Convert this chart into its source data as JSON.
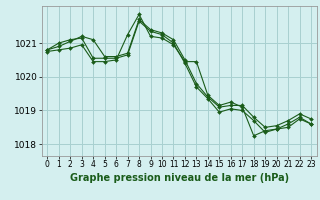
{
  "title": "Graphe pression niveau de la mer (hPa)",
  "background_color": "#d4efef",
  "grid_color": "#a8d0d0",
  "line_color": "#1a5c1a",
  "marker_color": "#1a5c1a",
  "xlim": [
    -0.5,
    23.5
  ],
  "ylim": [
    1017.65,
    1022.1
  ],
  "yticks": [
    1018,
    1019,
    1020,
    1021
  ],
  "xticks": [
    0,
    1,
    2,
    3,
    4,
    5,
    6,
    7,
    8,
    9,
    10,
    11,
    12,
    13,
    14,
    15,
    16,
    17,
    18,
    19,
    20,
    21,
    22,
    23
  ],
  "series1": [
    1020.8,
    1020.9,
    1021.05,
    1021.2,
    1021.1,
    1020.6,
    1020.6,
    1020.7,
    1021.7,
    1021.4,
    1021.3,
    1021.1,
    1020.5,
    1019.8,
    1019.4,
    1019.1,
    1019.15,
    1019.15,
    1018.8,
    1018.5,
    1018.55,
    1018.7,
    1018.9,
    1018.75
  ],
  "series2": [
    1020.8,
    1021.0,
    1021.1,
    1021.15,
    1020.55,
    1020.55,
    1020.55,
    1020.65,
    1021.65,
    1021.35,
    1021.25,
    1021.0,
    1020.4,
    1019.7,
    1019.35,
    1018.95,
    1019.05,
    1019.0,
    1018.7,
    1018.35,
    1018.45,
    1018.6,
    1018.8,
    1018.6
  ],
  "series3": [
    1020.75,
    1020.8,
    1020.85,
    1020.95,
    1020.45,
    1020.45,
    1020.5,
    1021.25,
    1021.85,
    1021.2,
    1021.15,
    1020.95,
    1020.45,
    1020.45,
    1019.45,
    1019.15,
    1019.25,
    1019.1,
    1018.25,
    1018.4,
    1018.45,
    1018.5,
    1018.75,
    1018.6
  ],
  "xlabel_fontsize": 7,
  "ytick_fontsize": 6.5,
  "xtick_fontsize": 5.5
}
